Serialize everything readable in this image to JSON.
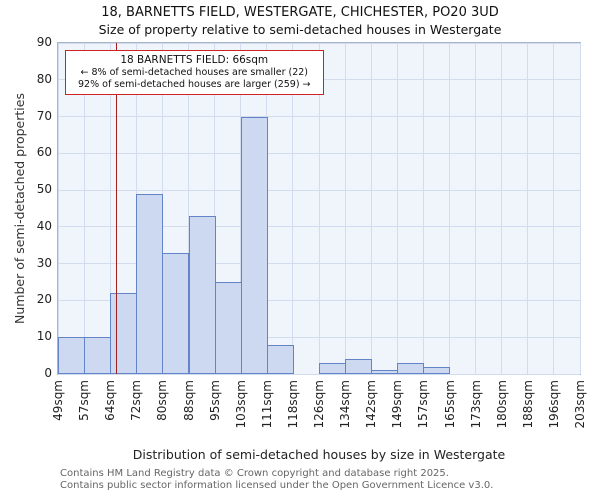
{
  "chart_data": {
    "type": "bar",
    "title": "18, BARNETTS FIELD, WESTERGATE, CHICHESTER, PO20 3UD",
    "subtitle": "Size of property relative to semi-detached houses in Westergate",
    "xlabel": "Distribution of semi-detached houses by size in Westergate",
    "ylabel": "Number of semi-detached properties",
    "ylim": [
      0,
      90
    ],
    "yticks": [
      0,
      10,
      20,
      30,
      40,
      50,
      60,
      70,
      80,
      90
    ],
    "grid": true,
    "legend": "none",
    "categories": [
      "49sqm",
      "57sqm",
      "64sqm",
      "72sqm",
      "80sqm",
      "88sqm",
      "95sqm",
      "103sqm",
      "111sqm",
      "118sqm",
      "126sqm",
      "134sqm",
      "142sqm",
      "149sqm",
      "157sqm",
      "165sqm",
      "173sqm",
      "180sqm",
      "188sqm",
      "196sqm",
      "203sqm"
    ],
    "bin_edges": [
      49,
      57,
      64,
      72,
      80,
      88,
      95,
      103,
      111,
      118,
      126,
      134,
      142,
      149,
      157,
      165,
      173,
      180,
      188,
      196,
      203
    ],
    "values": [
      10,
      10,
      22,
      49,
      33,
      43,
      25,
      70,
      8,
      0,
      3,
      4,
      1,
      3,
      2,
      0,
      0,
      0,
      0,
      0
    ],
    "marker": {
      "value": 66,
      "color": "#a02020"
    },
    "annotation": {
      "line1": "18 BARNETTS FIELD: 66sqm",
      "line2": "← 8% of semi-detached houses are smaller (22)",
      "line3": "92% of semi-detached houses are larger (259) →"
    },
    "colors": {
      "bar_fill": "#ccd9f0",
      "bar_edge": "#6384c6",
      "marker": "#a02020",
      "annotation_border": "#cc2222",
      "plot_bg": "#f0f4fb",
      "grid": "#d2dcee"
    }
  },
  "footer": {
    "line1": "Contains HM Land Registry data © Crown copyright and database right 2025.",
    "line2": "Contains public sector information licensed under the Open Government Licence v3.0."
  }
}
